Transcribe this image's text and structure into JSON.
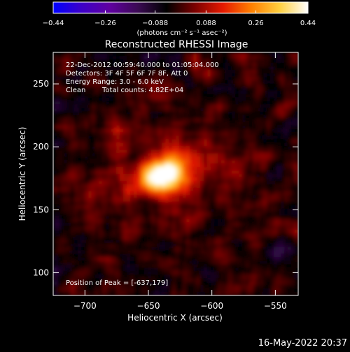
{
  "chart_data": {
    "type": "heatmap",
    "title": "Reconstructed RHESSI Image",
    "xlabel": "Heliocentric X (arcsec)",
    "ylabel": "Heliocentric Y (arcsec)",
    "xlim": [
      -725,
      -532
    ],
    "ylim": [
      82,
      275
    ],
    "x_ticks": [
      -700,
      -650,
      -600,
      -550
    ],
    "y_ticks": [
      100,
      150,
      200,
      250
    ],
    "x_tick_labels": [
      "−700",
      "−650",
      "−600",
      "−550"
    ],
    "y_tick_labels": [
      "100",
      "150",
      "200",
      "250"
    ],
    "colorbar": {
      "min": -0.44,
      "max": 0.44,
      "tick_values": [
        -0.44,
        -0.26,
        -0.088,
        0.088,
        0.26,
        0.44
      ],
      "tick_labels": [
        "−0.44",
        "−0.26",
        "−0.088",
        "0.088",
        "0.26",
        "0.44"
      ],
      "units_label": "(photons cm⁻² s⁻¹ asec⁻²)",
      "colors": [
        "#0000ff",
        "#3d00c8",
        "#6000a0",
        "#3a0a52",
        "#000000",
        "#7a0000",
        "#e61a00",
        "#ff8000",
        "#ffd040",
        "#ffffff"
      ]
    },
    "peak": {
      "x": -637,
      "y": 179,
      "value": 0.44
    },
    "annotations": [
      "22-Dec-2012 00:59:40.000 to 01:05:04.000",
      "Detectors: 3F 4F 5F 6F 7F 8F, Att 0",
      "Energy Range: 3.0 - 6.0 keV",
      "Clean",
      "Total counts: 4.82E+04",
      "Position of Peak = [-637,179]"
    ]
  },
  "footer_timestamp": "16-May-2022 20:37"
}
